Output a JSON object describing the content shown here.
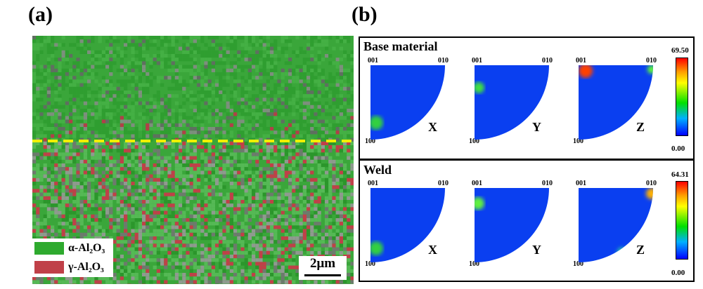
{
  "panel_a": {
    "label": "(a)",
    "legend": [
      {
        "text": "α-Al₂O₃",
        "color": "#2eaa2e"
      },
      {
        "text": "γ-Al₂O₃",
        "color": "#c04048"
      }
    ],
    "scale_bar": "2μm",
    "boundary_line_color": "#f0f000"
  },
  "panel_b": {
    "label": "(b)",
    "sections": [
      {
        "title": "Base material",
        "max": "69.50",
        "min": "0.00"
      },
      {
        "title": "Weld",
        "max": "64.31",
        "min": "0.00"
      }
    ],
    "poles": {
      "top_left": "001",
      "top_right": "010",
      "bottom_left": "100"
    },
    "axes": [
      "X",
      "Y",
      "Z"
    ]
  }
}
